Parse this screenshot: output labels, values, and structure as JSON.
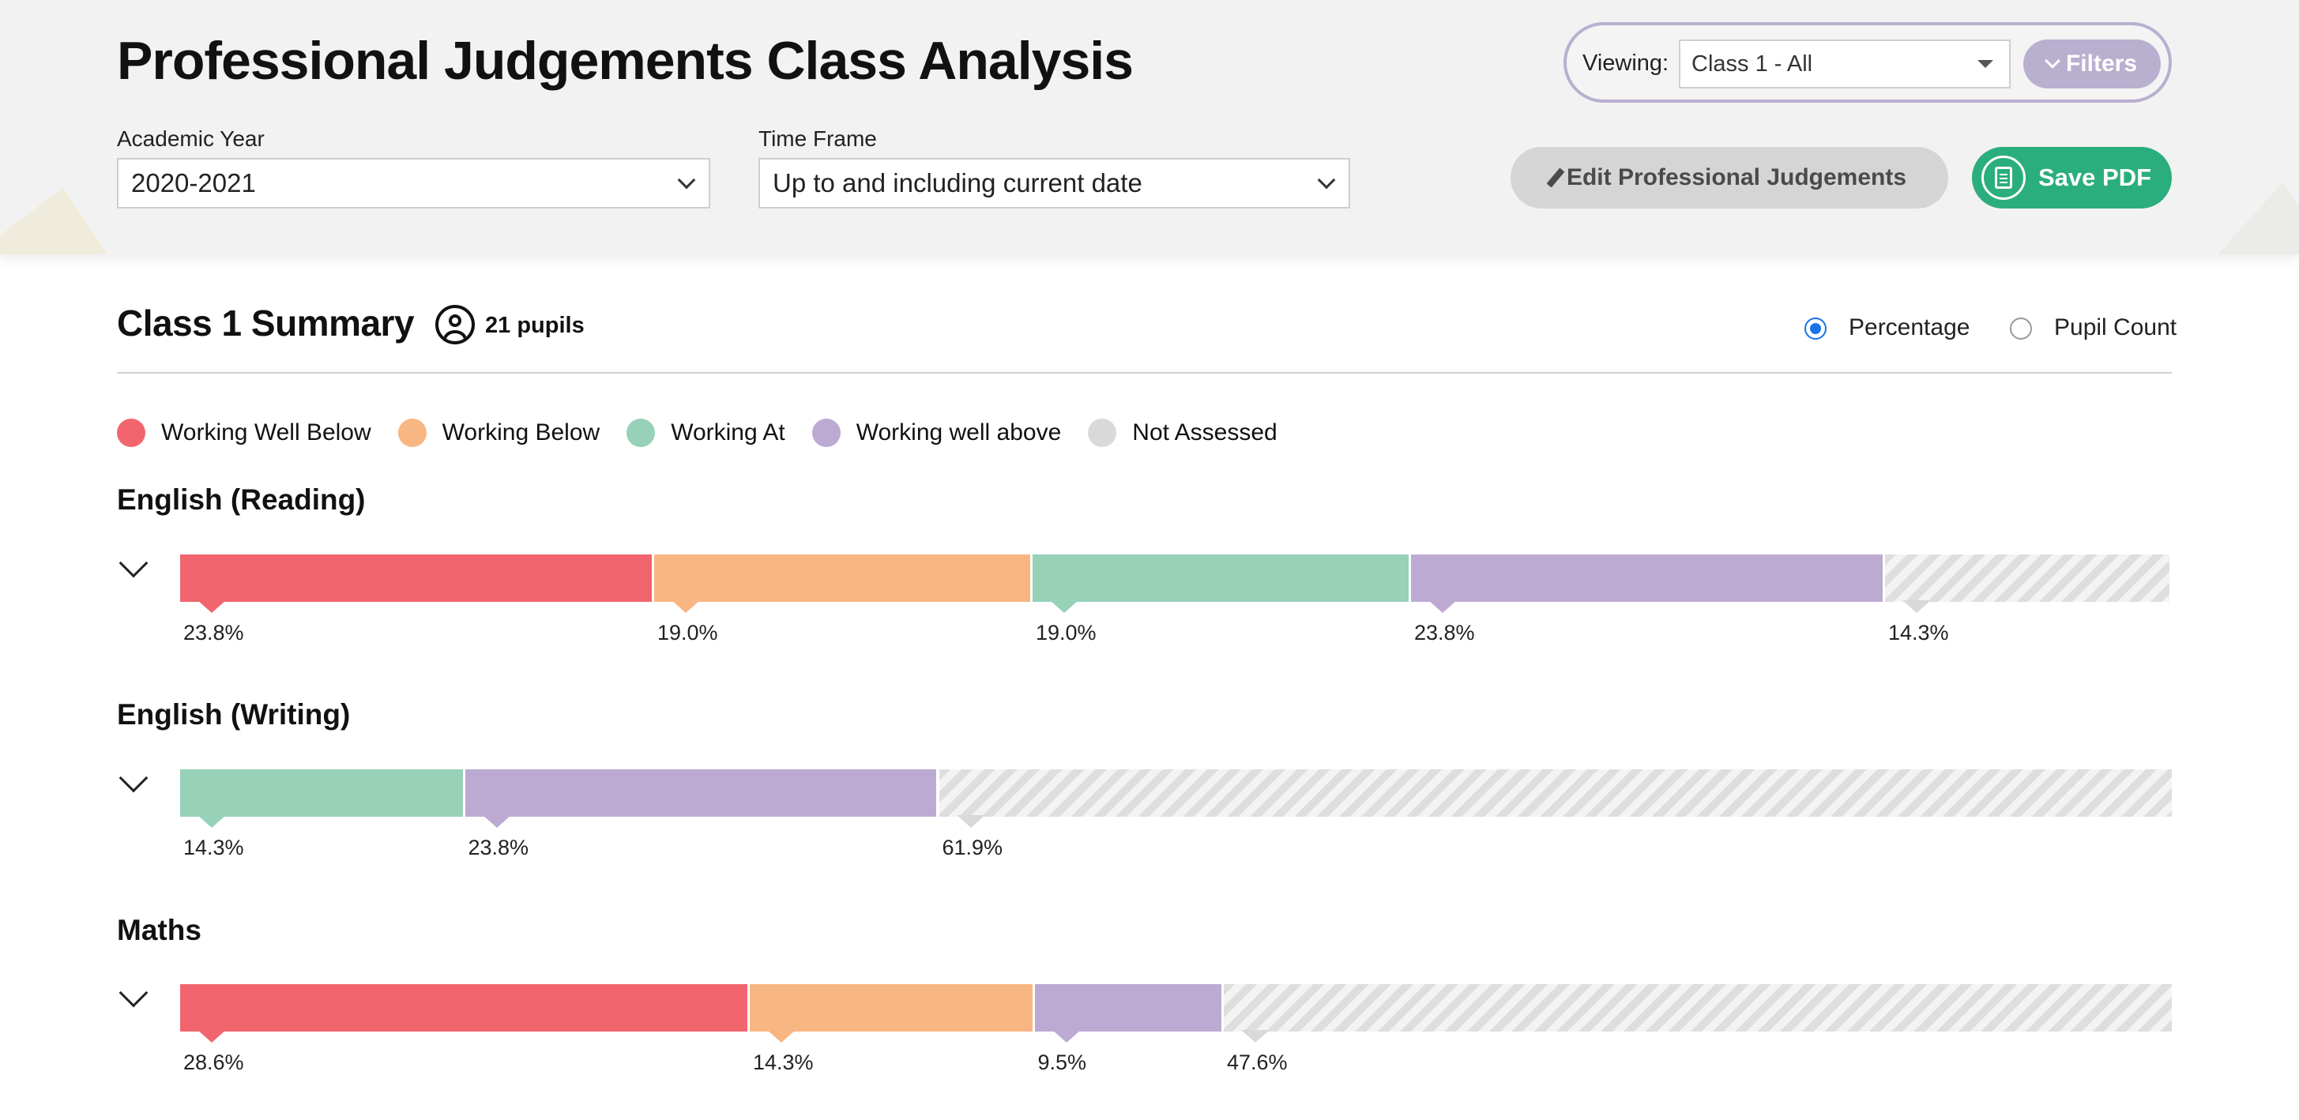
{
  "header": {
    "title": "Professional Judgements Class Analysis",
    "academic_year": {
      "label": "Academic Year",
      "value": "2020-2021"
    },
    "time_frame": {
      "label": "Time Frame",
      "value": "Up to and including current date"
    },
    "viewing": {
      "label": "Viewing:",
      "value": "Class 1 - All"
    },
    "filters_label": "Filters",
    "edit_label": "Edit Professional Judgements",
    "save_label": "Save PDF"
  },
  "summary": {
    "title": "Class 1 Summary",
    "pupil_count": "21 pupils",
    "view_options": [
      {
        "label": "Percentage",
        "selected": true
      },
      {
        "label": "Pupil Count",
        "selected": false
      }
    ]
  },
  "legend": [
    {
      "key": "wwb",
      "label": "Working Well Below",
      "color": "#f2656f"
    },
    {
      "key": "wb",
      "label": "Working Below",
      "color": "#f8b683"
    },
    {
      "key": "wa",
      "label": "Working At",
      "color": "#96d1b8"
    },
    {
      "key": "wwa",
      "label": "Working well above",
      "color": "#bdaad2"
    },
    {
      "key": "na",
      "label": "Not Assessed",
      "color": "#d9d9d9"
    }
  ],
  "chart_data": {
    "type": "bar",
    "categories": [
      "English (Reading)",
      "English (Writing)",
      "Maths"
    ],
    "series": [
      {
        "name": "Working Well Below",
        "values": [
          23.8,
          0,
          28.6
        ]
      },
      {
        "name": "Working Below",
        "values": [
          19.0,
          0,
          14.3
        ]
      },
      {
        "name": "Working At",
        "values": [
          19.0,
          14.3,
          0
        ]
      },
      {
        "name": "Working well above",
        "values": [
          23.8,
          23.8,
          9.5
        ]
      },
      {
        "name": "Not Assessed",
        "values": [
          14.3,
          61.9,
          47.6
        ]
      }
    ],
    "value_labels": [
      [
        "23.8%",
        "19.0%",
        "19.0%",
        "23.8%",
        "14.3%"
      ],
      [
        "",
        "",
        "14.3%",
        "23.8%",
        "61.9%"
      ],
      [
        "28.6%",
        "14.3%",
        "",
        "9.5%",
        "47.6%"
      ]
    ],
    "stacked": true,
    "legend_position": "top-left"
  }
}
